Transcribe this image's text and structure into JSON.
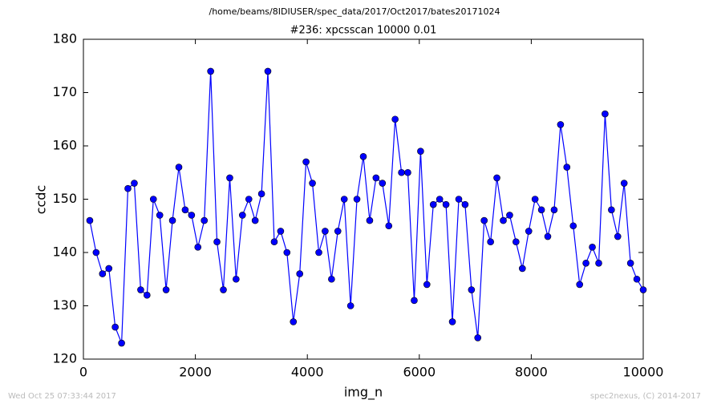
{
  "chart_data": {
    "type": "line",
    "suptitle": "/home/beams/8IDIUSER/spec_data/2017/Oct2017/bates20171024",
    "title": "#236: xpcsscan 10000 0.01",
    "xlabel": "img_n",
    "ylabel": "ccdc",
    "footer_left": "Wed Oct 25 07:33:44 2017",
    "footer_right": "spec2nexus, (C) 2014-2017",
    "xlim": [
      0,
      10000
    ],
    "ylim": [
      120,
      180
    ],
    "xticks": [
      0,
      2000,
      4000,
      6000,
      8000,
      10000
    ],
    "yticks": [
      120,
      130,
      140,
      150,
      160,
      170,
      180
    ],
    "x": [
      114,
      227,
      341,
      455,
      568,
      682,
      795,
      909,
      1023,
      1136,
      1250,
      1364,
      1477,
      1591,
      1705,
      1818,
      1932,
      2045,
      2159,
      2273,
      2386,
      2500,
      2614,
      2727,
      2841,
      2955,
      3068,
      3182,
      3295,
      3409,
      3523,
      3636,
      3750,
      3864,
      3977,
      4091,
      4205,
      4318,
      4432,
      4545,
      4659,
      4773,
      4886,
      5000,
      5114,
      5227,
      5341,
      5455,
      5568,
      5682,
      5795,
      5909,
      6023,
      6136,
      6250,
      6364,
      6477,
      6591,
      6705,
      6818,
      6932,
      7045,
      7159,
      7273,
      7386,
      7500,
      7614,
      7727,
      7841,
      7955,
      8068,
      8182,
      8295,
      8409,
      8523,
      8636,
      8750,
      8864,
      8977,
      9091,
      9205,
      9318,
      9432,
      9545,
      9659,
      9773,
      9886,
      10000
    ],
    "series": [
      {
        "color": "#0000ff",
        "values": [
          146,
          140,
          136,
          137,
          126,
          123,
          152,
          153,
          133,
          132,
          150,
          147,
          133,
          146,
          156,
          148,
          147,
          141,
          146,
          174,
          142,
          133,
          154,
          135,
          147,
          150,
          146,
          151,
          174,
          142,
          144,
          140,
          127,
          136,
          157,
          153,
          140,
          144,
          135,
          144,
          150,
          130,
          150,
          158,
          146,
          154,
          153,
          145,
          165,
          155,
          155,
          131,
          159,
          134,
          149,
          150,
          149,
          127,
          150,
          149,
          133,
          124,
          146,
          142,
          154,
          146,
          147,
          142,
          137,
          144,
          150,
          148,
          143,
          148,
          164,
          156,
          145,
          134,
          138,
          141,
          138,
          166,
          148,
          143,
          153,
          138,
          135,
          133
        ]
      }
    ]
  }
}
